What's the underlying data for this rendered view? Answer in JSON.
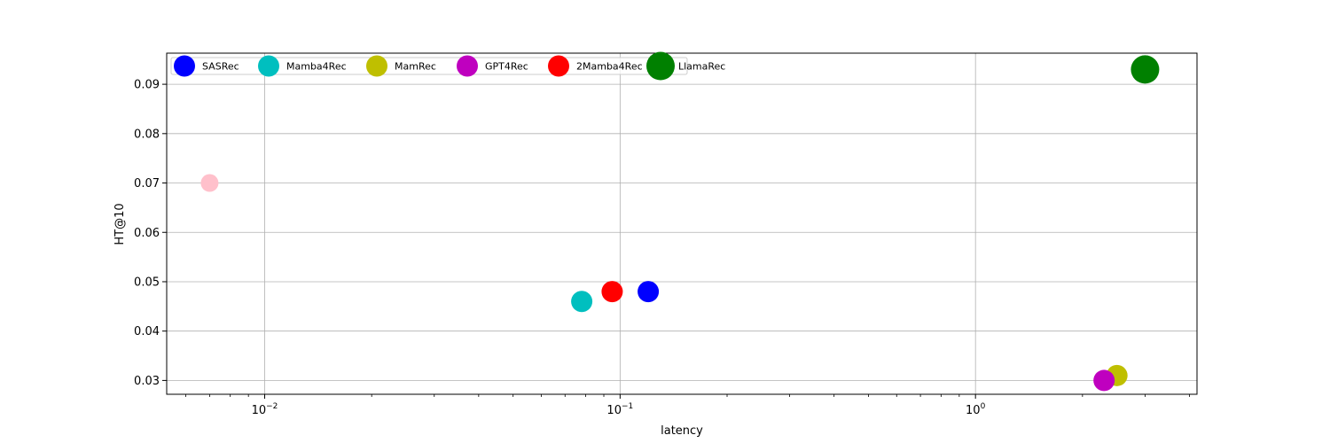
{
  "chart_data": {
    "type": "scatter",
    "title": "",
    "xlabel": "latency",
    "ylabel": "HT@10",
    "xscale": "log",
    "xlim": [
      0.0053,
      4.2
    ],
    "ylim": [
      0.0272,
      0.0963
    ],
    "grid": true,
    "legend_position": "top-left",
    "x_ticks": [
      {
        "value": 0.01,
        "base": "10",
        "exp": "−2"
      },
      {
        "value": 0.1,
        "base": "10",
        "exp": "−1"
      },
      {
        "value": 1,
        "base": "10",
        "exp": "0"
      }
    ],
    "y_ticks": [
      {
        "value": 0.03,
        "label": "0.03"
      },
      {
        "value": 0.04,
        "label": "0.04"
      },
      {
        "value": 0.05,
        "label": "0.05"
      },
      {
        "value": 0.06,
        "label": "0.06"
      },
      {
        "value": 0.07,
        "label": "0.07"
      },
      {
        "value": 0.08,
        "label": "0.08"
      },
      {
        "value": 0.09,
        "label": "0.09"
      }
    ],
    "series": [
      {
        "name": "SASRec",
        "color": "#0000ff",
        "marker_size": "medium",
        "points": [
          {
            "x": 0.12,
            "y": 0.048
          }
        ]
      },
      {
        "name": "Mamba4Rec",
        "color": "#00bfbf",
        "marker_size": "medium",
        "points": [
          {
            "x": 0.078,
            "y": 0.046
          }
        ]
      },
      {
        "name": "MamRec",
        "color": "#bfbf00",
        "marker_size": "medium",
        "points": [
          {
            "x": 2.5,
            "y": 0.031
          }
        ]
      },
      {
        "name": "GPT4Rec",
        "color": "#bf00bf",
        "marker_size": "medium",
        "points": [
          {
            "x": 2.3,
            "y": 0.03
          }
        ]
      },
      {
        "name": "2Mamba4Rec",
        "color": "#ff0000",
        "marker_size": "medium",
        "points": [
          {
            "x": 0.095,
            "y": 0.048
          }
        ]
      },
      {
        "name": "LlamaRec",
        "color": "#008000",
        "marker_size": "large",
        "points": [
          {
            "x": 3.0,
            "y": 0.093
          }
        ]
      },
      {
        "color": "#ffc0cb",
        "marker_size": "small",
        "points": [
          {
            "x": 0.007,
            "y": 0.07
          }
        ]
      }
    ]
  }
}
